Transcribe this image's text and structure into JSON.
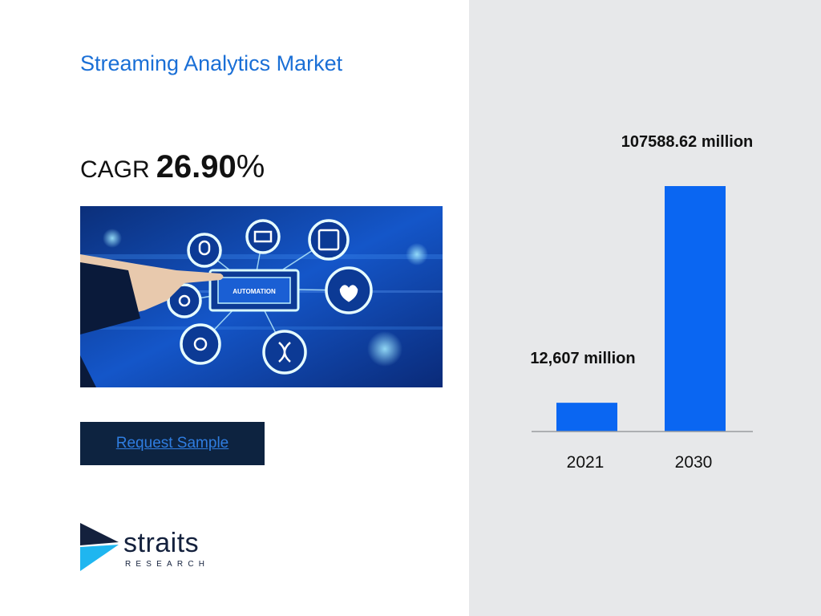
{
  "title": "Streaming Analytics Market",
  "cagr": {
    "label": "CAGR",
    "value": "26.90",
    "unit": "%"
  },
  "hero_image": {
    "banner_text": "AUTOMATION"
  },
  "request_button": {
    "label": "Request Sample"
  },
  "logo": {
    "name": "straits",
    "subtitle": "RESEARCH"
  },
  "colors": {
    "accent": "#1a6fd6",
    "bar": "#0a66f2",
    "button_bg": "#0d2340",
    "right_panel_bg": "#e7e8ea"
  },
  "chart_data": {
    "type": "bar",
    "categories": [
      "2021",
      "2030"
    ],
    "values": [
      12607,
      107588.62
    ],
    "data_labels": [
      "12,607 million",
      "107588.62 million"
    ],
    "title": "",
    "xlabel": "",
    "ylabel": "",
    "grid": false
  }
}
